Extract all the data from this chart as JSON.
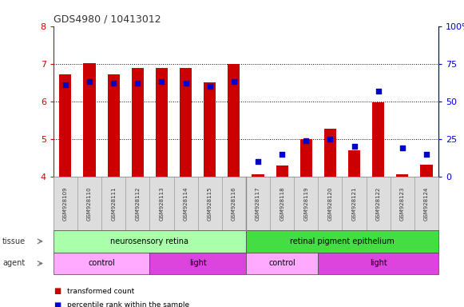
{
  "title": "GDS4980 / 10413012",
  "samples": [
    "GSM928109",
    "GSM928110",
    "GSM928111",
    "GSM928112",
    "GSM928113",
    "GSM928114",
    "GSM928115",
    "GSM928116",
    "GSM928117",
    "GSM928118",
    "GSM928119",
    "GSM928120",
    "GSM928121",
    "GSM928122",
    "GSM928123",
    "GSM928124"
  ],
  "bar_heights": [
    6.72,
    7.02,
    6.72,
    6.88,
    6.88,
    6.88,
    6.5,
    7.0,
    4.06,
    4.3,
    5.0,
    5.28,
    4.7,
    5.97,
    4.05,
    4.32
  ],
  "percentile_ranks": [
    61,
    63,
    62,
    62,
    63,
    62,
    60,
    63,
    10,
    15,
    24,
    25,
    20,
    57,
    19,
    15
  ],
  "bar_bottom": 4.0,
  "ylim_left": [
    4,
    8
  ],
  "ylim_right": [
    0,
    100
  ],
  "yticks_left": [
    4,
    5,
    6,
    7,
    8
  ],
  "yticks_right": [
    0,
    25,
    50,
    75,
    100
  ],
  "ytick_labels_right": [
    "0",
    "25",
    "50",
    "75",
    "100%"
  ],
  "bar_color": "#CC0000",
  "square_color": "#0000CC",
  "tissue_groups": [
    {
      "label": "neurosensory retina",
      "start": 0,
      "end": 8,
      "color": "#AAFFAA"
    },
    {
      "label": "retinal pigment epithelium",
      "start": 8,
      "end": 16,
      "color": "#44DD44"
    }
  ],
  "agent_groups": [
    {
      "label": "control",
      "start": 0,
      "end": 4,
      "color": "#FFAAFF"
    },
    {
      "label": "light",
      "start": 4,
      "end": 8,
      "color": "#DD44DD"
    },
    {
      "label": "control",
      "start": 8,
      "end": 11,
      "color": "#FFAAFF"
    },
    {
      "label": "light",
      "start": 11,
      "end": 16,
      "color": "#DD44DD"
    }
  ],
  "left_tick_color": "#CC0000",
  "right_tick_color": "#0000CC",
  "grid_ticks": [
    5,
    6,
    7
  ],
  "separator_x": 7.5,
  "xlim": [
    -0.5,
    15.5
  ]
}
